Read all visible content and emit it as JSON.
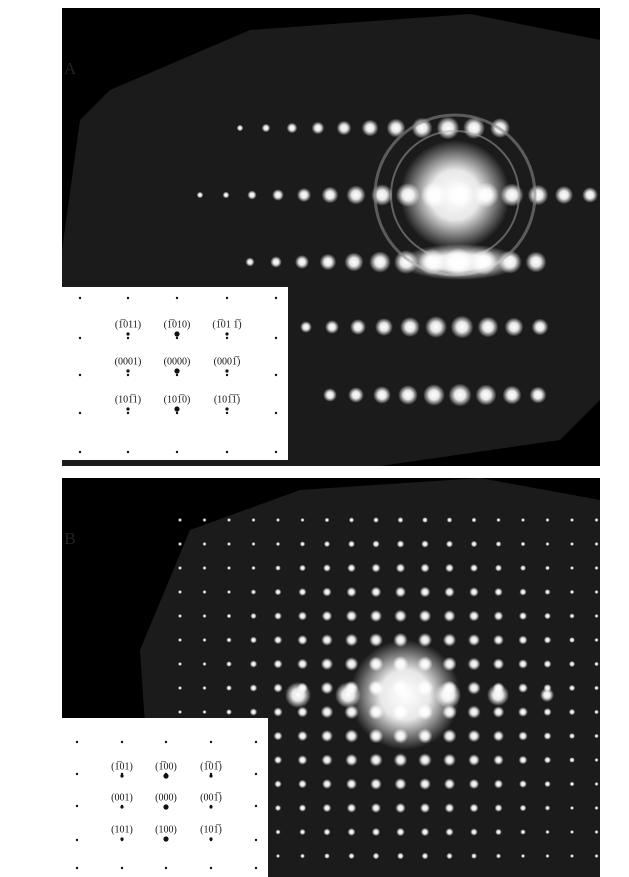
{
  "panels": [
    {
      "label": "A",
      "inset": {
        "rows": [
          [
            "(1̅011)",
            "(1̅010)",
            "(1̅01 1̅)"
          ],
          [
            "(0001)",
            "(0000)",
            "(0001̅)"
          ],
          [
            "(101̅1)",
            "(101̅0)",
            "(101̅1̅)"
          ]
        ]
      }
    },
    {
      "label": "B",
      "inset": {
        "rows": [
          [
            "(1̅01)",
            "(1̅00)",
            "(1̅01̅)"
          ],
          [
            "(001)",
            "(000)",
            "(001̅)"
          ],
          [
            "(101)",
            "(100)",
            "(101̅)"
          ]
        ]
      }
    }
  ]
}
